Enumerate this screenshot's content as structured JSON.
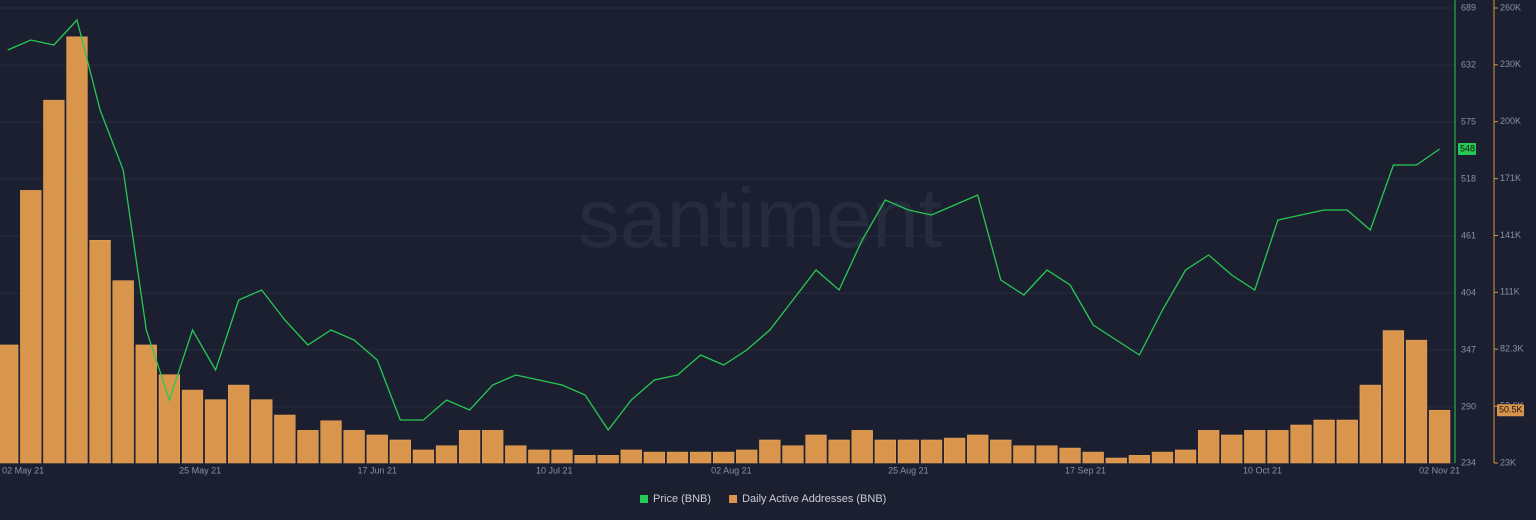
{
  "chart_data": {
    "type": "line-bar",
    "watermark": "santiment",
    "x": [
      "2021-04-30",
      "2021-05-03",
      "2021-05-06",
      "2021-05-09",
      "2021-05-12",
      "2021-05-15",
      "2021-05-18",
      "2021-05-21",
      "2021-05-24",
      "2021-05-27",
      "2021-05-30",
      "2021-06-02",
      "2021-06-05",
      "2021-06-08",
      "2021-06-11",
      "2021-06-14",
      "2021-06-17",
      "2021-06-20",
      "2021-06-23",
      "2021-06-26",
      "2021-06-29",
      "2021-07-02",
      "2021-07-05",
      "2021-07-08",
      "2021-07-11",
      "2021-07-14",
      "2021-07-17",
      "2021-07-20",
      "2021-07-23",
      "2021-07-26",
      "2021-07-29",
      "2021-08-01",
      "2021-08-04",
      "2021-08-07",
      "2021-08-10",
      "2021-08-13",
      "2021-08-16",
      "2021-08-19",
      "2021-08-22",
      "2021-08-25",
      "2021-08-28",
      "2021-08-31",
      "2021-09-03",
      "2021-09-06",
      "2021-09-09",
      "2021-09-12",
      "2021-09-15",
      "2021-09-18",
      "2021-09-21",
      "2021-09-24",
      "2021-09-27",
      "2021-09-30",
      "2021-10-03",
      "2021-10-06",
      "2021-10-09",
      "2021-10-12",
      "2021-10-15",
      "2021-10-18",
      "2021-10-21",
      "2021-10-24",
      "2021-10-27",
      "2021-10-30",
      "2021-11-02"
    ],
    "xlim": [
      "2021-04-29",
      "2021-11-04"
    ],
    "xticks": [
      {
        "value": "2021-05-02",
        "label": "02 May 21"
      },
      {
        "value": "2021-05-25",
        "label": "25 May 21"
      },
      {
        "value": "2021-06-17",
        "label": "17 Jun 21"
      },
      {
        "value": "2021-07-10",
        "label": "10 Jul 21"
      },
      {
        "value": "2021-08-02",
        "label": "02 Aug 21"
      },
      {
        "value": "2021-08-25",
        "label": "25 Aug 21"
      },
      {
        "value": "2021-09-17",
        "label": "17 Sep 21"
      },
      {
        "value": "2021-10-10",
        "label": "10 Oct 21"
      },
      {
        "value": "2021-11-02",
        "label": "02 Nov 21"
      }
    ],
    "ylim": [
      234,
      689
    ],
    "yticks": [
      234,
      290,
      347,
      404,
      461,
      518,
      575,
      632,
      689
    ],
    "y2lim": [
      23000,
      260000
    ],
    "y2ticks": [
      {
        "value": 23000,
        "label": "23K"
      },
      {
        "value": 52600,
        "label": "52.6K"
      },
      {
        "value": 82300,
        "label": "82.3K"
      },
      {
        "value": 111900,
        "label": "111K"
      },
      {
        "value": 141500,
        "label": "141K"
      },
      {
        "value": 171100,
        "label": "171K"
      },
      {
        "value": 200800,
        "label": "200K"
      },
      {
        "value": 230400,
        "label": "230K"
      },
      {
        "value": 260000,
        "label": "260K"
      }
    ],
    "grid": true,
    "series": [
      {
        "name": "Price (BNB)",
        "color": "#26c953",
        "kind": "line",
        "values": [
          647,
          657,
          652,
          677,
          587,
          527,
          367,
          297,
          367,
          327,
          397,
          407,
          377,
          352,
          367,
          357,
          337,
          277,
          277,
          297,
          287,
          312,
          322,
          317,
          312,
          302,
          267,
          297,
          317,
          322,
          342,
          332,
          347,
          367,
          397,
          427,
          407,
          457,
          497,
          487,
          482,
          492,
          502,
          417,
          402,
          427,
          412,
          372,
          357,
          342,
          387,
          427,
          442,
          422,
          407,
          477,
          482,
          487,
          487,
          467,
          532,
          532,
          548
        ]
      },
      {
        "name": "Daily Active Addresses (BNB)",
        "color": "#d9954b",
        "kind": "bar",
        "axis": "y2",
        "values": [
          84500,
          165000,
          212000,
          245000,
          139000,
          118000,
          84500,
          69000,
          61000,
          56000,
          63600,
          56000,
          48000,
          40000,
          45000,
          40000,
          37600,
          35000,
          29800,
          32000,
          40000,
          40000,
          32000,
          29800,
          29800,
          27000,
          27000,
          29800,
          28700,
          28700,
          28700,
          28700,
          29800,
          35000,
          32000,
          37600,
          35000,
          40000,
          35000,
          35000,
          35000,
          36000,
          37600,
          35000,
          32000,
          32000,
          30800,
          28700,
          25600,
          27000,
          28700,
          29800,
          40000,
          37600,
          40000,
          40000,
          42800,
          45400,
          45400,
          63600,
          92000,
          87000,
          50500
        ],
        "value_labels": [
          null,
          null,
          null,
          null,
          null,
          null,
          null,
          null,
          null,
          null,
          null,
          null,
          null,
          null,
          null,
          null,
          null,
          null,
          null,
          null,
          null,
          null,
          null,
          null,
          null,
          null,
          null,
          null,
          null,
          null,
          null,
          null,
          null,
          null,
          null,
          null,
          null,
          null,
          null,
          null,
          null,
          null,
          null,
          null,
          null,
          null,
          null,
          null,
          null,
          null,
          null,
          null,
          null,
          null,
          null,
          null,
          null,
          null,
          null,
          null,
          null,
          null,
          "50.5K"
        ]
      }
    ]
  }
}
